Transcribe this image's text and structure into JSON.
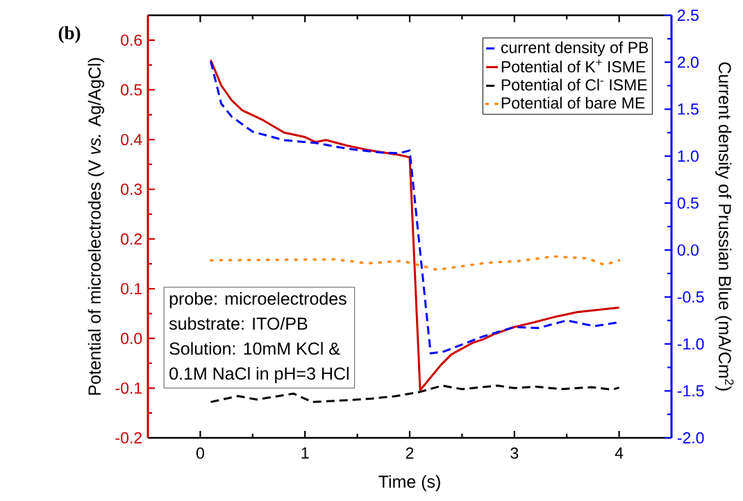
{
  "chart_data": {
    "type": "line",
    "xlabel": "Time (s)",
    "ylabel": "Potential of microelectrodes (V *vs.* Ag/AgCl)",
    "y2label": "Current density of Prussian Blue (mA/Cm$^{2}$)",
    "xlim": [
      -0.5,
      4.5
    ],
    "xticks": [
      0,
      1,
      2,
      3,
      4
    ],
    "ylim": [
      -0.2,
      0.65
    ],
    "yticks": [
      -0.2,
      -0.1,
      {
        "value": 0,
        "label": "0.0"
      },
      0.1,
      0.2,
      0.3,
      0.4,
      0.5,
      0.6
    ],
    "y2lim": [
      -2.0,
      2.5
    ],
    "y2ticks": [
      {
        "value": -2,
        "label": "-2.0"
      },
      -1.5,
      {
        "value": -1,
        "label": "-1.0"
      },
      -0.5,
      {
        "value": 0,
        "label": "0.0"
      },
      0.5,
      {
        "value": 1,
        "label": "1.0"
      },
      1.5,
      {
        "value": 2,
        "label": "2.0"
      },
      2.5
    ],
    "legend": "top right",
    "annotations": [
      "(b)",
      "probe: microelectrodes",
      "substrate: ITO/PB",
      "Solution: 10mM KCl &",
      "0.1M NaCl in pH=3 HCl"
    ],
    "series": [
      {
        "name": "current density of PB",
        "color": "#0000ff",
        "axis": "y2",
        "line_style": "dashed",
        "x": [
          0.1,
          0.2,
          0.3,
          0.5,
          0.8,
          1.1,
          1.4,
          1.7,
          1.9,
          2.0,
          2.2,
          2.33,
          2.7,
          3.0,
          3.23,
          3.5,
          3.76,
          4.0
        ],
        "values": [
          2.01,
          1.56,
          1.42,
          1.26,
          1.17,
          1.14,
          1.08,
          1.04,
          1.03,
          1.06,
          -1.1,
          -1.08,
          -0.92,
          -0.82,
          -0.83,
          -0.75,
          -0.81,
          -0.77
        ]
      },
      {
        "name": "Potential of K$^{+}$ ISME",
        "color": "#cc0000",
        "line_style": "solid",
        "x": [
          0.1,
          0.2,
          0.3,
          0.4,
          0.6,
          0.8,
          1.0,
          1.1,
          1.2,
          1.4,
          1.6,
          1.9,
          2.0,
          2.1,
          2.3,
          2.4,
          2.6,
          2.7,
          2.8,
          3.0,
          3.2,
          3.4,
          3.6,
          4.0
        ],
        "values": [
          0.56,
          0.509,
          0.479,
          0.459,
          0.439,
          0.414,
          0.405,
          0.395,
          0.399,
          0.388,
          0.379,
          0.369,
          0.364,
          -0.104,
          -0.053,
          -0.032,
          -0.009,
          -0.002,
          0.008,
          0.023,
          0.033,
          0.044,
          0.053,
          0.062
        ]
      },
      {
        "name": "Potential of Cl$^{-}$ ISME",
        "color": "#000000",
        "line_style": "dashed",
        "x": [
          0.1,
          0.36,
          0.54,
          0.89,
          1.07,
          1.42,
          1.64,
          1.87,
          2.09,
          2.31,
          2.5,
          2.84,
          3.0,
          3.21,
          3.45,
          3.74,
          3.93,
          4.0
        ],
        "values": [
          -0.128,
          -0.116,
          -0.123,
          -0.111,
          -0.128,
          -0.124,
          -0.121,
          -0.116,
          -0.108,
          -0.095,
          -0.102,
          -0.095,
          -0.1,
          -0.097,
          -0.102,
          -0.098,
          -0.103,
          -0.099
        ]
      },
      {
        "name": "Potential of bare ME",
        "color": "#ff8c1a",
        "line_style": "dotted",
        "x": [
          0.1,
          1.29,
          1.6,
          1.93,
          2.26,
          2.73,
          3.06,
          3.37,
          3.7,
          3.86,
          4.0
        ],
        "values": [
          0.157,
          0.159,
          0.151,
          0.156,
          0.138,
          0.152,
          0.156,
          0.165,
          0.161,
          0.148,
          0.157
        ]
      }
    ]
  }
}
